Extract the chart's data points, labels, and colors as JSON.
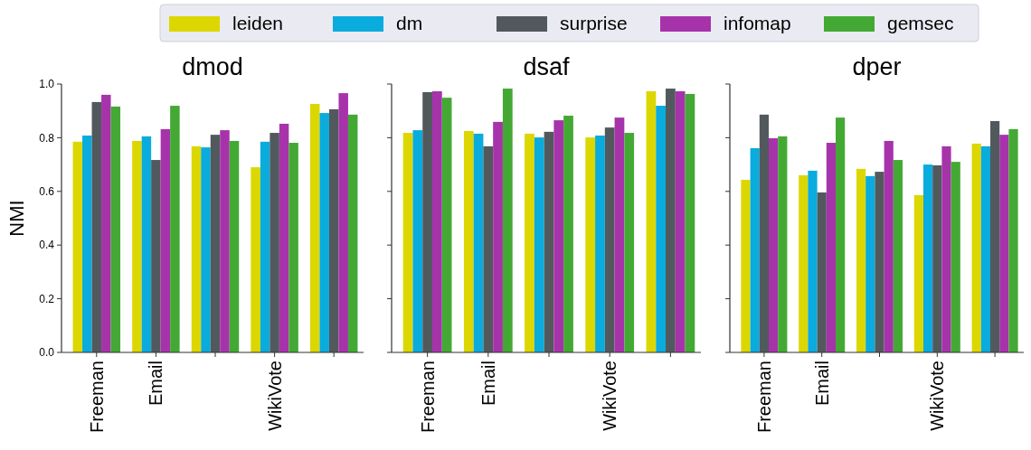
{
  "chart_data": [
    {
      "type": "bar",
      "title": "dmod",
      "ylabel": "NMI",
      "categories": [
        "Freeman",
        "Email",
        null,
        "WikiVote",
        null
      ],
      "ylim": [
        0,
        1
      ],
      "yticks": [
        {
          "value": 0,
          "label": "0.0"
        },
        {
          "value": 0.2,
          "label": "0.2"
        },
        {
          "value": 0.4,
          "label": "0.4"
        },
        {
          "value": 0.6,
          "label": "0.6"
        },
        {
          "value": 0.8,
          "label": "0.8"
        },
        {
          "value": 1,
          "label": "1.0"
        }
      ],
      "legend": "top",
      "grid": false,
      "series": [
        {
          "name": "leiden",
          "color": "#dcd700",
          "values": [
            0.785,
            0.788,
            0.768,
            0.69,
            0.926
          ]
        },
        {
          "name": "dm",
          "color": "#0aabdd",
          "values": [
            0.808,
            0.805,
            0.764,
            0.785,
            0.892
          ]
        },
        {
          "name": "surprise",
          "color": "#52595d",
          "values": [
            0.933,
            0.717,
            0.811,
            0.818,
            0.906
          ]
        },
        {
          "name": "infomap",
          "color": "#a733ab",
          "values": [
            0.96,
            0.832,
            0.828,
            0.852,
            0.966
          ]
        },
        {
          "name": "gemsec",
          "color": "#43a934",
          "values": [
            0.916,
            0.919,
            0.788,
            0.781,
            0.886
          ]
        }
      ]
    },
    {
      "type": "bar",
      "title": "dsaf",
      "categories": [
        "Freeman",
        "Email",
        null,
        "WikiVote",
        null
      ],
      "ylim": [
        0,
        1
      ],
      "yticks": [
        {
          "value": 0,
          "label": null
        },
        {
          "value": 0.2,
          "label": null
        },
        {
          "value": 0.4,
          "label": null
        },
        {
          "value": 0.6,
          "label": null
        },
        {
          "value": 0.8,
          "label": null
        },
        {
          "value": 1,
          "label": null
        }
      ],
      "tick_labels": "x",
      "grid": false,
      "series": [
        {
          "color": "#dcd700",
          "values": [
            0.818,
            0.825,
            0.815,
            0.801,
            0.973
          ]
        },
        {
          "color": "#0aabdd",
          "values": [
            0.828,
            0.815,
            0.801,
            0.808,
            0.919
          ]
        },
        {
          "color": "#52595d",
          "values": [
            0.97,
            0.768,
            0.822,
            0.838,
            0.983
          ]
        },
        {
          "color": "#a733ab",
          "values": [
            0.973,
            0.859,
            0.865,
            0.875,
            0.973
          ]
        },
        {
          "color": "#43a934",
          "values": [
            0.949,
            0.983,
            0.882,
            0.818,
            0.963
          ]
        }
      ]
    },
    {
      "type": "bar",
      "title": "dper",
      "categories": [
        "Freeman",
        "Email",
        null,
        "WikiVote",
        null
      ],
      "ylim": [
        0,
        1
      ],
      "yticks": [
        {
          "value": 0,
          "label": null
        },
        {
          "value": 0.2,
          "label": null
        },
        {
          "value": 0.4,
          "label": null
        },
        {
          "value": 0.6,
          "label": null
        },
        {
          "value": 0.8,
          "label": null
        },
        {
          "value": 1,
          "label": null
        }
      ],
      "tick_labels": "x",
      "grid": false,
      "series": [
        {
          "color": "#dcd700",
          "values": [
            0.643,
            0.66,
            0.684,
            0.586,
            0.778
          ]
        },
        {
          "color": "#0aabdd",
          "values": [
            0.761,
            0.677,
            0.657,
            0.7,
            0.768
          ]
        },
        {
          "color": "#52595d",
          "values": [
            0.886,
            0.596,
            0.673,
            0.697,
            0.862
          ]
        },
        {
          "color": "#a733ab",
          "values": [
            0.798,
            0.781,
            0.788,
            0.768,
            0.811
          ]
        },
        {
          "color": "#43a934",
          "values": [
            0.805,
            0.875,
            0.717,
            0.71,
            0.832
          ]
        }
      ]
    }
  ]
}
